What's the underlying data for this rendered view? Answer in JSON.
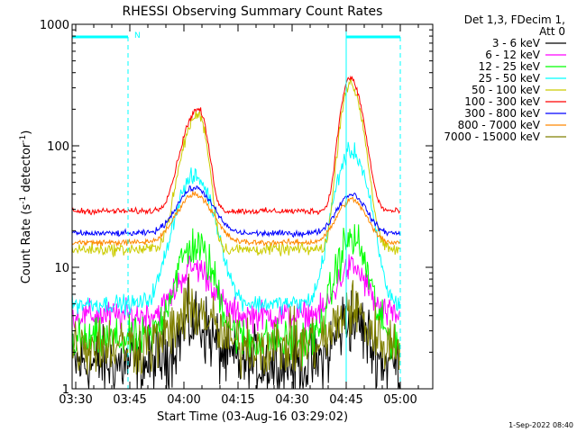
{
  "chart_data": {
    "type": "line",
    "title": "RHESSI Observing Summary Count Rates",
    "xlabel": "Start Time (03-Aug-16 03:29:02)",
    "ylabel_main": "Count Rate (s",
    "ylabel_sup1": "-1",
    "ylabel_mid": " detector",
    "ylabel_sup2": "-1",
    "ylabel_end": ")",
    "y_scale": "log",
    "ylim": [
      1,
      1000
    ],
    "xlim_minutes": [
      0,
      100
    ],
    "x_ticks": [
      {
        "label": "03:30",
        "minute": 1
      },
      {
        "label": "03:45",
        "minute": 16
      },
      {
        "label": "04:00",
        "minute": 31
      },
      {
        "label": "04:15",
        "minute": 46
      },
      {
        "label": "04:30",
        "minute": 61
      },
      {
        "label": "04:45",
        "minute": 76
      },
      {
        "label": "05:00",
        "minute": 91
      }
    ],
    "y_ticks": [
      {
        "label": "1",
        "value": 1
      },
      {
        "label": "10",
        "value": 10
      },
      {
        "label": "100",
        "value": 100
      },
      {
        "label": "1000",
        "value": 1000
      }
    ],
    "legend_header": [
      "Det 1,3, FDecim 1,",
      "Att 0"
    ],
    "legend_placement": "right",
    "night_label": "N",
    "date_stamp": "1-Sep-2022 08:40",
    "night_intervals": [
      [
        0,
        15.5
      ],
      [
        76,
        91
      ]
    ],
    "series": [
      {
        "name": "3 - 6 keV",
        "color": "#000000",
        "base": 1.6,
        "peak1": 3.5,
        "peak2": 3.8,
        "noise": 0.6
      },
      {
        "name": "6 - 12 keV",
        "color": "#ff00ff",
        "base": 4.0,
        "peak1": 10,
        "peak2": 10,
        "noise": 0.25
      },
      {
        "name": "12 - 25 keV",
        "color": "#00ff00",
        "base": 2.5,
        "peak1": 15,
        "peak2": 17,
        "noise": 0.35
      },
      {
        "name": "25 - 50 keV",
        "color": "#00ffff",
        "base": 5.0,
        "peak1": 55,
        "peak2": 90,
        "noise": 0.15
      },
      {
        "name": "50 - 100 keV",
        "color": "#cccc00",
        "base": 14,
        "peak1": 180,
        "peak2": 320,
        "noise": 0.1
      },
      {
        "name": "100 - 300 keV",
        "color": "#ff0000",
        "base": 29,
        "peak1": 200,
        "peak2": 360,
        "noise": 0.05
      },
      {
        "name": "300 - 800 keV",
        "color": "#0000ff",
        "base": 19,
        "peak1": 45,
        "peak2": 40,
        "noise": 0.05
      },
      {
        "name": "800 - 7000 keV",
        "color": "#ff8800",
        "base": 16,
        "peak1": 40,
        "peak2": 36,
        "noise": 0.05
      },
      {
        "name": "7000 - 15000 keV",
        "color": "#808000",
        "base": 2.3,
        "peak1": 4.5,
        "peak2": 4.5,
        "noise": 0.5
      }
    ]
  },
  "colors": {
    "night_marker": "#00ffff",
    "axes": "#000000"
  }
}
